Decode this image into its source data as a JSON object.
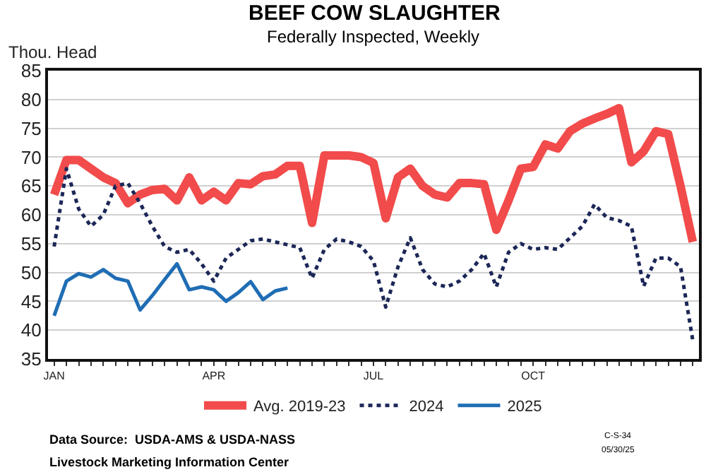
{
  "chart_data": {
    "type": "line",
    "title": "BEEF COW SLAUGHTER",
    "subtitle": "Federally Inspected, Weekly",
    "ylabel": "Thou. Head",
    "categories": [
      "JAN",
      null,
      null,
      null,
      null,
      null,
      null,
      null,
      null,
      null,
      null,
      null,
      null,
      "APR",
      null,
      null,
      null,
      null,
      null,
      null,
      null,
      null,
      null,
      null,
      null,
      null,
      "JUL",
      null,
      null,
      null,
      null,
      null,
      null,
      null,
      null,
      null,
      null,
      null,
      null,
      "OCT",
      null,
      null,
      null,
      null,
      null,
      null,
      null,
      null,
      null,
      null,
      null,
      null,
      null
    ],
    "series": [
      {
        "name": "Avg. 2019-23",
        "color": "#f24b4b",
        "line_style": "solid",
        "values": [
          63.5,
          69.5,
          69.5,
          68,
          66.5,
          65.5,
          62,
          63.5,
          64.3,
          64.5,
          62.5,
          66.5,
          62.5,
          64,
          62.5,
          65.5,
          65.3,
          66.7,
          67,
          68.5,
          68.5,
          58.6,
          70.3,
          70.3,
          70.3,
          70,
          69,
          59.4,
          66.5,
          68,
          65,
          63.5,
          63,
          65.5,
          65.5,
          65.3,
          57.4,
          62.5,
          68,
          68.3,
          72.2,
          71.5,
          74.5,
          75.8,
          76.7,
          77.5,
          78.5,
          69.1,
          71,
          74.5,
          74,
          65,
          55.3
        ]
      },
      {
        "name": "2024",
        "color": "#1c2757",
        "line_style": "dotted",
        "values": [
          54.5,
          68,
          61,
          58,
          60,
          65,
          65.5,
          62,
          58,
          54.5,
          53.5,
          54,
          51.5,
          48.5,
          52.5,
          54,
          55.5,
          55.8,
          55.3,
          54.8,
          54.3,
          49,
          54,
          55.8,
          55.3,
          54.5,
          52,
          44,
          51,
          56,
          50.5,
          48,
          47.5,
          48.5,
          50.5,
          53.3,
          47.5,
          53.5,
          55,
          54,
          54.3,
          54,
          56,
          58,
          61.8,
          59.5,
          59,
          58,
          47.6,
          52.5,
          52.5,
          51,
          38.2
        ]
      },
      {
        "name": "2025",
        "color": "#1f6db4",
        "line_style": "solid",
        "values": [
          42.5,
          48.5,
          49.8,
          49.2,
          50.5,
          49,
          48.5,
          43.5,
          46,
          48.8,
          51.5,
          47,
          47.5,
          47,
          45,
          46.5,
          48.4,
          45.3,
          46.8,
          47.3,
          null,
          null,
          null,
          null,
          null,
          null,
          null,
          null,
          null,
          null,
          null,
          null,
          null,
          null,
          null,
          null,
          null,
          null,
          null,
          null,
          null,
          null,
          null,
          null,
          null,
          null,
          null,
          null,
          null,
          null,
          null,
          null,
          null
        ]
      }
    ],
    "ylim": [
      35,
      85
    ],
    "yticks": [
      35,
      40,
      45,
      50,
      55,
      60,
      65,
      70,
      75,
      80,
      85
    ],
    "grid": "y",
    "legend": "bottom",
    "marker": "none",
    "annotations": [
      "Data Source:  USDA-AMS & USDA-NASS",
      "Livestock Marketing Information Center",
      "C-S-34",
      "05/30/25"
    ]
  }
}
